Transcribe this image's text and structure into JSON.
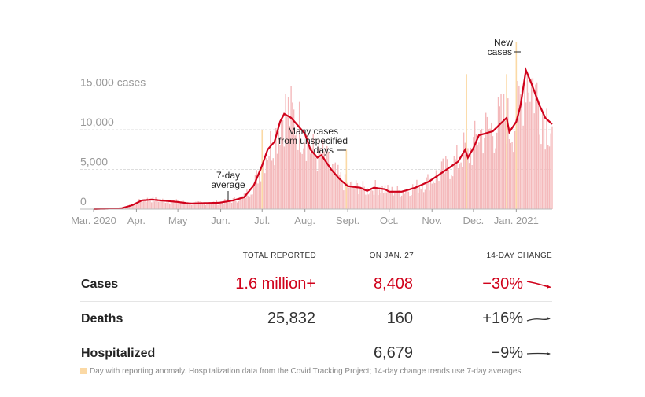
{
  "chart_data": {
    "type": "bar+line",
    "title": "",
    "ylabel_unit": "cases",
    "y_ticks": [
      {
        "v": 0,
        "label": "0"
      },
      {
        "v": 5000,
        "label": "5,000"
      },
      {
        "v": 10000,
        "label": "10,000"
      },
      {
        "v": 15000,
        "label": "15,000 cases"
      }
    ],
    "ylim": [
      0,
      20000
    ],
    "x_ticks": [
      {
        "d": 0,
        "label": "Mar. 2020"
      },
      {
        "d": 31,
        "label": "Apr."
      },
      {
        "d": 61,
        "label": "May"
      },
      {
        "d": 92,
        "label": "Jun."
      },
      {
        "d": 122,
        "label": "Jul."
      },
      {
        "d": 153,
        "label": "Aug."
      },
      {
        "d": 184,
        "label": "Sept."
      },
      {
        "d": 214,
        "label": "Oct."
      },
      {
        "d": 245,
        "label": "Nov."
      },
      {
        "d": 275,
        "label": "Dec."
      },
      {
        "d": 306,
        "label": "Jan. 2021"
      }
    ],
    "x_unit": "days since Mar. 1, 2020",
    "xlim": [
      0,
      332
    ],
    "series": [
      {
        "name": "7-day average",
        "points": [
          [
            0,
            0
          ],
          [
            20,
            100
          ],
          [
            28,
            500
          ],
          [
            35,
            1100
          ],
          [
            42,
            1200
          ],
          [
            55,
            1000
          ],
          [
            61,
            900
          ],
          [
            70,
            700
          ],
          [
            80,
            750
          ],
          [
            91,
            800
          ],
          [
            101,
            1100
          ],
          [
            109,
            1500
          ],
          [
            116,
            3000
          ],
          [
            122,
            5500
          ],
          [
            126,
            7500
          ],
          [
            131,
            8500
          ],
          [
            135,
            11000
          ],
          [
            138,
            12000
          ],
          [
            143,
            11500
          ],
          [
            148,
            10500
          ],
          [
            153,
            9500
          ],
          [
            157,
            7500
          ],
          [
            162,
            6500
          ],
          [
            165,
            6800
          ],
          [
            172,
            5000
          ],
          [
            178,
            3800
          ],
          [
            184,
            2900
          ],
          [
            193,
            2700
          ],
          [
            198,
            2300
          ],
          [
            203,
            2700
          ],
          [
            211,
            2500
          ],
          [
            214,
            2200
          ],
          [
            223,
            2200
          ],
          [
            233,
            2700
          ],
          [
            243,
            3500
          ],
          [
            254,
            4800
          ],
          [
            264,
            6000
          ],
          [
            269,
            7500
          ],
          [
            271,
            6500
          ],
          [
            275,
            7700
          ],
          [
            279,
            9300
          ],
          [
            289,
            9800
          ],
          [
            299,
            11500
          ],
          [
            301,
            9700
          ],
          [
            306,
            11000
          ],
          [
            309,
            13000
          ],
          [
            313,
            17500
          ],
          [
            317,
            15800
          ],
          [
            323,
            13000
          ],
          [
            327,
            11500
          ],
          [
            332,
            10700
          ]
        ]
      }
    ],
    "anomaly_days": [
      [
        122,
        10000
      ],
      [
        183,
        7500
      ],
      [
        270,
        17000
      ],
      [
        299,
        17000
      ],
      [
        306,
        21000
      ]
    ],
    "annotations": {
      "avg": [
        "7-day",
        "average"
      ],
      "unspec": [
        "Many cases",
        "from unspecified",
        "days"
      ],
      "new": [
        "New",
        "cases"
      ]
    }
  },
  "table": {
    "headers": [
      "TOTAL REPORTED",
      "ON JAN. 27",
      "14-DAY CHANGE"
    ],
    "rows": [
      {
        "label": "Cases",
        "total": "1.6 million+",
        "day": "8,408",
        "change": "−30%",
        "trend": "down"
      },
      {
        "label": "Deaths",
        "total": "25,832",
        "day": "160",
        "change": "+16%",
        "trend": "up"
      },
      {
        "label": "Hospitalized",
        "total": "",
        "day": "6,679",
        "change": "−9%",
        "trend": "flat"
      }
    ]
  },
  "note": "Day with reporting anomaly. Hospitalization data from the Covid Tracking Project; 14-day change trends use 7-day averages.",
  "colors": {
    "line": "#d0021b",
    "bar": "#f4b9bb",
    "anomaly": "#fbd9a5"
  }
}
